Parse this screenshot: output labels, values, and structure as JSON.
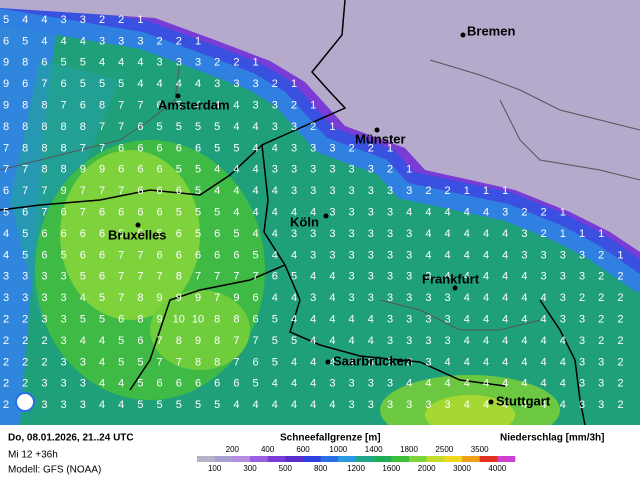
{
  "map": {
    "grid": [
      [
        5,
        4,
        4,
        3,
        3,
        2,
        2,
        1
      ],
      [
        6,
        5,
        4,
        4,
        4,
        3,
        3,
        3,
        2,
        2,
        1
      ],
      [
        9,
        8,
        6,
        5,
        5,
        4,
        4,
        4,
        3,
        3,
        3,
        2,
        2,
        1
      ],
      [
        9,
        6,
        7,
        6,
        5,
        5,
        5,
        4,
        4,
        4,
        4,
        3,
        3,
        3,
        2,
        1
      ],
      [
        9,
        8,
        8,
        7,
        6,
        8,
        7,
        7,
        6,
        5,
        4,
        4,
        4,
        3,
        3,
        2,
        1
      ],
      [
        8,
        8,
        8,
        8,
        8,
        7,
        7,
        6,
        5,
        5,
        5,
        5,
        4,
        4,
        3,
        3,
        2,
        1
      ],
      [
        7,
        8,
        8,
        8,
        7,
        7,
        6,
        6,
        6,
        6,
        6,
        5,
        5,
        4,
        4,
        3,
        3,
        3,
        2,
        2,
        1
      ],
      [
        7,
        7,
        8,
        8,
        9,
        9,
        6,
        6,
        6,
        5,
        5,
        4,
        4,
        4,
        3,
        3,
        3,
        3,
        3,
        3,
        2,
        1
      ],
      [
        6,
        7,
        7,
        9,
        7,
        7,
        7,
        6,
        6,
        6,
        5,
        4,
        4,
        4,
        4,
        3,
        3,
        3,
        3,
        3,
        3,
        3,
        2,
        2,
        1,
        1,
        1
      ],
      [
        5,
        6,
        7,
        6,
        7,
        6,
        6,
        6,
        6,
        5,
        5,
        5,
        4,
        4,
        4,
        4,
        4,
        3,
        3,
        3,
        3,
        4,
        4,
        4,
        4,
        4,
        3,
        2,
        2,
        1
      ],
      [
        4,
        5,
        6,
        6,
        6,
        6,
        5,
        5,
        5,
        6,
        5,
        6,
        5,
        4,
        4,
        3,
        3,
        3,
        3,
        3,
        3,
        3,
        4,
        4,
        4,
        4,
        4,
        3,
        2,
        1,
        1,
        1
      ],
      [
        4,
        5,
        6,
        5,
        6,
        6,
        7,
        7,
        6,
        6,
        6,
        6,
        6,
        5,
        4,
        4,
        3,
        3,
        3,
        3,
        3,
        3,
        4,
        4,
        4,
        4,
        4,
        3,
        3,
        3,
        3,
        2,
        1
      ],
      [
        3,
        3,
        3,
        3,
        5,
        6,
        7,
        7,
        7,
        8,
        7,
        7,
        7,
        7,
        6,
        5,
        4,
        4,
        3,
        3,
        3,
        3,
        3,
        4,
        4,
        4,
        4,
        4,
        3,
        3,
        3,
        2,
        2
      ],
      [
        3,
        3,
        3,
        3,
        4,
        5,
        7,
        8,
        9,
        9,
        9,
        7,
        9,
        6,
        4,
        4,
        3,
        4,
        3,
        3,
        3,
        3,
        3,
        3,
        4,
        4,
        4,
        4,
        4,
        3,
        2,
        2,
        2
      ],
      [
        2,
        2,
        3,
        3,
        5,
        5,
        6,
        8,
        9,
        10,
        10,
        8,
        8,
        6,
        5,
        4,
        4,
        4,
        4,
        4,
        3,
        3,
        3,
        3,
        4,
        4,
        4,
        4,
        4,
        3,
        3,
        2,
        2
      ],
      [
        2,
        2,
        2,
        3,
        4,
        4,
        5,
        6,
        7,
        8,
        9,
        8,
        7,
        7,
        5,
        5,
        4,
        4,
        4,
        4,
        3,
        3,
        3,
        3,
        4,
        4,
        4,
        4,
        4,
        4,
        3,
        2,
        2
      ],
      [
        2,
        2,
        2,
        3,
        3,
        4,
        5,
        5,
        7,
        7,
        8,
        8,
        7,
        6,
        5,
        4,
        4,
        4,
        4,
        3,
        3,
        3,
        3,
        4,
        4,
        4,
        4,
        4,
        4,
        4,
        3,
        3,
        2
      ],
      [
        2,
        2,
        3,
        3,
        3,
        4,
        4,
        5,
        6,
        6,
        6,
        6,
        6,
        5,
        4,
        4,
        4,
        3,
        3,
        3,
        3,
        4,
        4,
        4,
        4,
        4,
        4,
        4,
        4,
        4,
        3,
        3,
        2
      ],
      [
        2,
        2,
        3,
        3,
        3,
        4,
        4,
        5,
        5,
        5,
        5,
        5,
        4,
        4,
        4,
        4,
        4,
        4,
        3,
        3,
        3,
        3,
        3,
        3,
        4,
        4,
        4,
        4,
        4,
        4,
        3,
        3,
        2
      ]
    ],
    "cities": [
      "Bremen",
      "Amsterdam",
      "Münster",
      "Köln",
      "Bruxelles",
      "Frankfurt",
      "Saarbrücken",
      "Stuttgart"
    ]
  },
  "footer": {
    "date": "Do, 08.01.2026, 21..24 UTC",
    "run": "Mi 12 +36h",
    "model": "Modell: GFS (NOAA)",
    "legend_title": "Schneefallgrenze [m]",
    "legend_unit": "Niederschlag [mm/3h]",
    "legend_ticks": [
      100,
      200,
      300,
      400,
      500,
      600,
      800,
      1000,
      1200,
      1400,
      1600,
      1800,
      2000,
      2500,
      3000,
      3500,
      4000
    ],
    "legend_colors": [
      "#b7b0c8",
      "#a99fd0",
      "#b58de0",
      "#9a5fe0",
      "#7b3bd6",
      "#5a2fd0",
      "#2f3fe0",
      "#2a6fe6",
      "#2a9ae0",
      "#1fa58a",
      "#1fae55",
      "#3cc23a",
      "#7fd43a",
      "#c4dc2c",
      "#f0d81c",
      "#f0a01a",
      "#e03020",
      "#d040d0"
    ]
  }
}
